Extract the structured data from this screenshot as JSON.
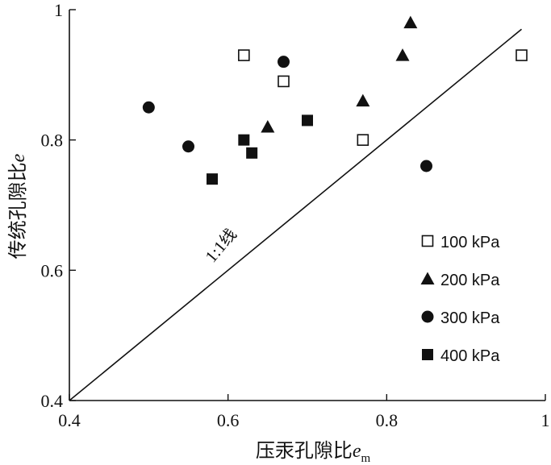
{
  "chart_data": {
    "type": "scatter",
    "xlabel": {
      "main": "压汞孔隙比",
      "var": "e",
      "sub": "m"
    },
    "ylabel": {
      "main": "传统孔隙比",
      "var": "e"
    },
    "xlim": [
      0.4,
      1.0
    ],
    "ylim": [
      0.4,
      1.0
    ],
    "xticks": [
      0.4,
      0.6,
      0.8,
      1.0
    ],
    "yticks": [
      0.4,
      0.6,
      0.8,
      1.0
    ],
    "xtick_labels": [
      "0.4",
      "0.6",
      "0.8",
      "1"
    ],
    "ytick_labels": [
      "0.4",
      "0.6",
      "0.8",
      "1"
    ],
    "grid": false,
    "legend_position": "bottom-right",
    "reference_line": {
      "label_prefix": "1:1",
      "label_suffix": "线",
      "from": [
        0.4,
        0.4
      ],
      "to": [
        0.97,
        0.97
      ]
    },
    "series": [
      {
        "name": "100 kPa",
        "marker": "open-square",
        "x": [
          0.62,
          0.67,
          0.77,
          0.97
        ],
        "y": [
          0.93,
          0.89,
          0.8,
          0.93
        ]
      },
      {
        "name": "200 kPa",
        "marker": "filled-triangle",
        "x": [
          0.65,
          0.77,
          0.82,
          0.83
        ],
        "y": [
          0.82,
          0.86,
          0.93,
          0.98
        ]
      },
      {
        "name": "300 kPa",
        "marker": "filled-circle",
        "x": [
          0.5,
          0.55,
          0.67,
          0.85
        ],
        "y": [
          0.85,
          0.79,
          0.92,
          0.76
        ]
      },
      {
        "name": "400 kPa",
        "marker": "filled-square",
        "x": [
          0.58,
          0.62,
          0.63,
          0.7
        ],
        "y": [
          0.74,
          0.8,
          0.78,
          0.83
        ]
      }
    ]
  }
}
